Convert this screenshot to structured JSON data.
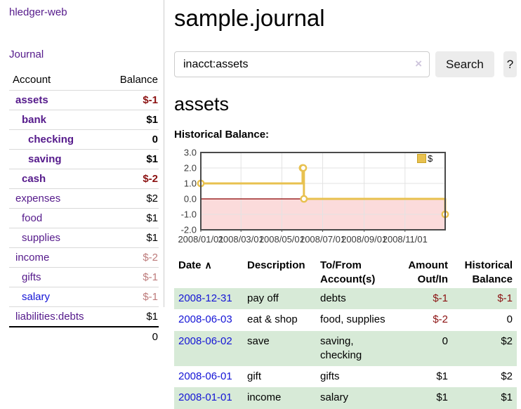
{
  "app": {
    "title": "hledger-web"
  },
  "sidebar": {
    "journal_label": "Journal",
    "table": {
      "headers": {
        "account": "Account",
        "balance": "Balance"
      },
      "accounts": [
        {
          "name": "assets",
          "bal": "$-1"
        },
        {
          "name": "bank",
          "bal": "$1"
        },
        {
          "name": "checking",
          "bal": "0"
        },
        {
          "name": "saving",
          "bal": "$1"
        },
        {
          "name": "cash",
          "bal": "$-2"
        },
        {
          "name": "expenses",
          "bal": "$2"
        },
        {
          "name": "food",
          "bal": "$1"
        },
        {
          "name": "supplies",
          "bal": "$1"
        },
        {
          "name": "income",
          "bal": "$-2"
        },
        {
          "name": "gifts",
          "bal": "$-1"
        },
        {
          "name": "salary",
          "bal": "$-1"
        },
        {
          "name": "liabilities:debts",
          "bal": "$1"
        }
      ],
      "total": "0"
    }
  },
  "main": {
    "title": "sample.journal",
    "search": {
      "value": "inacct:assets",
      "clear": "×",
      "button": "Search",
      "help": "?"
    },
    "section_title": "assets",
    "chart_title": "Historical Balance:"
  },
  "chart_data": {
    "type": "line",
    "title": "Historical Balance:",
    "step": true,
    "xlim": [
      "2008-01-01",
      "2008-12-31"
    ],
    "ylim": [
      -2,
      3
    ],
    "yticks": [
      -2,
      -1,
      0,
      1,
      2,
      3
    ],
    "xticks": [
      "2008/01/01",
      "2008/03/01",
      "2008/05/01",
      "2008/07/01",
      "2008/09/01",
      "2008/11/01"
    ],
    "series": [
      {
        "name": "$",
        "color": "#e8c14f",
        "points": [
          [
            "2008-01-01",
            1
          ],
          [
            "2008-06-01",
            2
          ],
          [
            "2008-06-02",
            2
          ],
          [
            "2008-06-03",
            0
          ],
          [
            "2008-12-31",
            -1
          ]
        ]
      }
    ],
    "legend_position": "top-right",
    "grid": true,
    "negative_region_color": "#fbdbdb",
    "zero_line_color": "#8b0000"
  },
  "register": {
    "headers": {
      "date": "Date",
      "date_sort": "∧",
      "description": "Description",
      "tofrom_l1": "To/From",
      "tofrom_l2": "Account(s)",
      "amount_l1": "Amount",
      "amount_l2": "Out/In",
      "bal_l1": "Historical",
      "bal_l2": "Balance"
    },
    "rows": [
      {
        "date": "2008-12-31",
        "desc": "pay off",
        "accts": "debts",
        "amount": "$-1",
        "bal": "$-1"
      },
      {
        "date": "2008-06-03",
        "desc": "eat & shop",
        "accts": "food, supplies",
        "amount": "$-2",
        "bal": "0"
      },
      {
        "date": "2008-06-02",
        "desc": "save",
        "accts": "saving, checking",
        "amount": "0",
        "bal": "$2"
      },
      {
        "date": "2008-06-01",
        "desc": "gift",
        "accts": "gifts",
        "amount": "$1",
        "bal": "$2"
      },
      {
        "date": "2008-01-01",
        "desc": "income",
        "accts": "salary",
        "amount": "$1",
        "bal": "$1"
      }
    ]
  }
}
